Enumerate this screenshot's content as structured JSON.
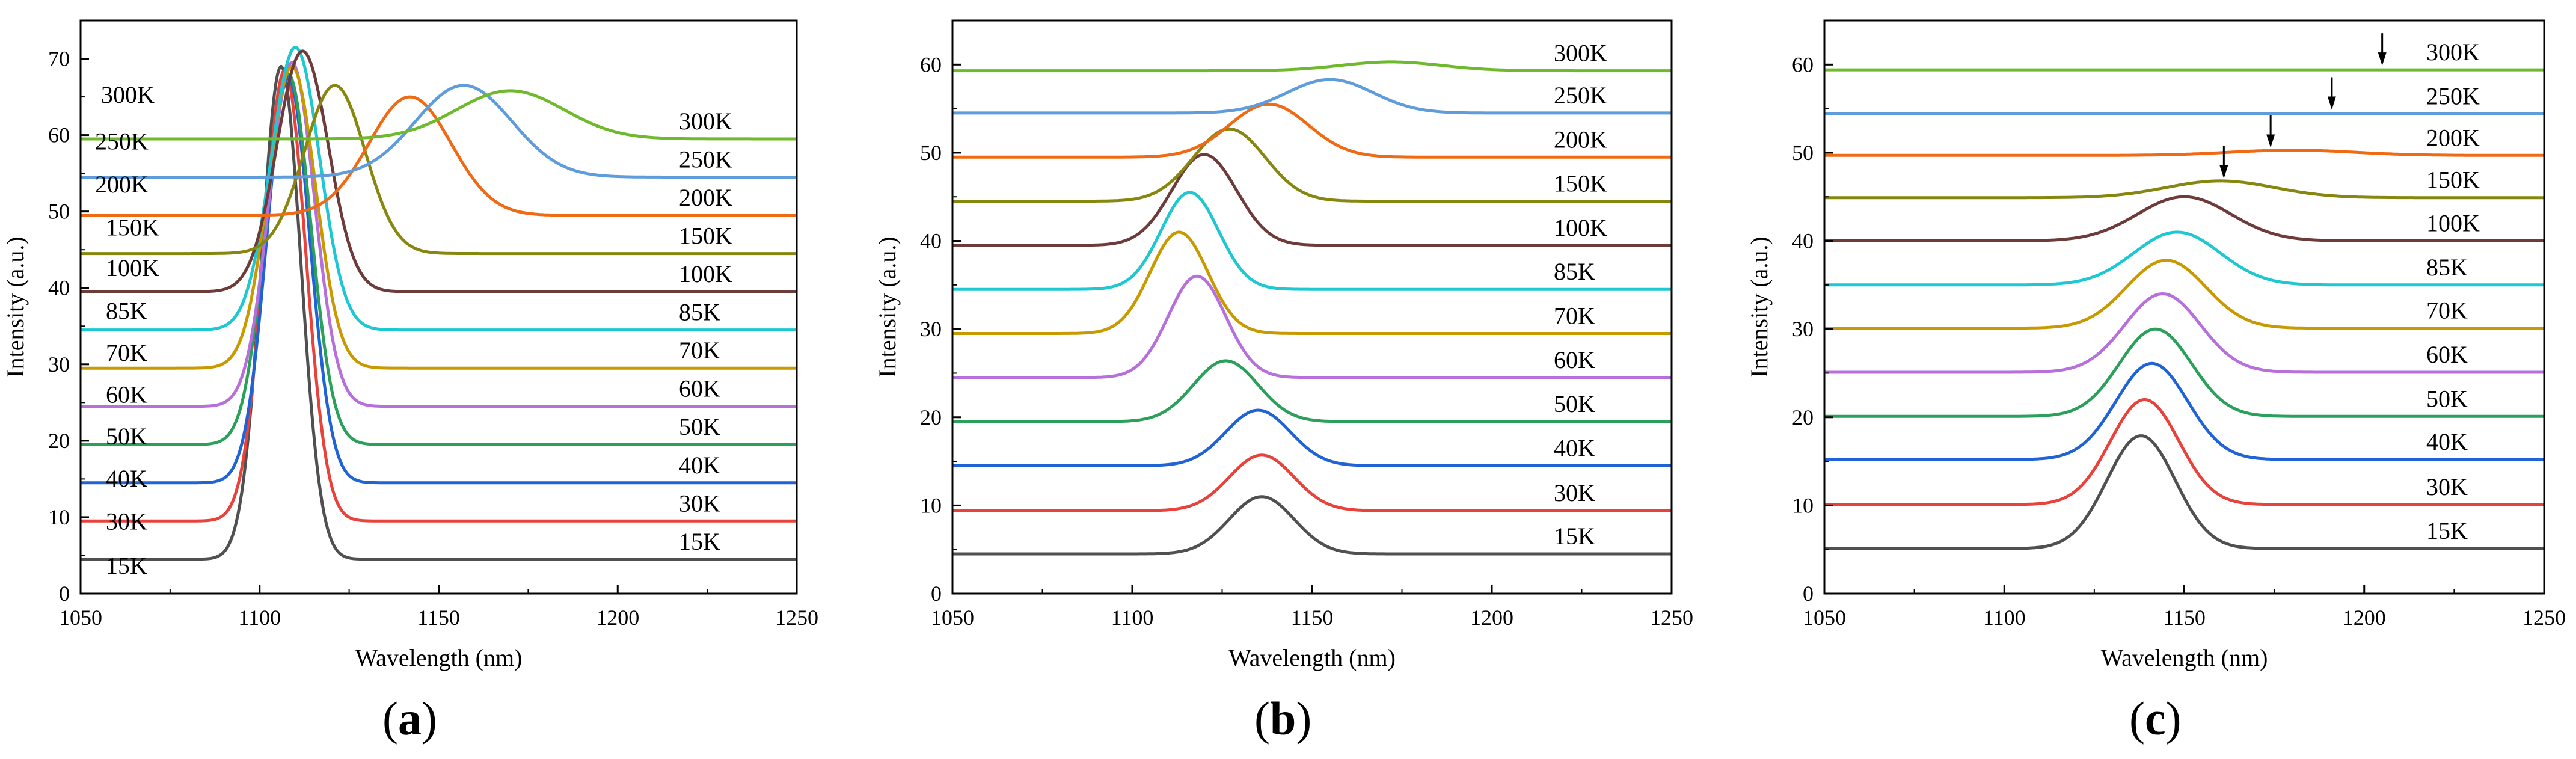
{
  "figure": {
    "panel_labels": [
      {
        "open": "(",
        "letter": "a",
        "close": ")"
      },
      {
        "open": "(",
        "letter": "b",
        "close": ")"
      },
      {
        "open": "(",
        "letter": "c",
        "close": ")"
      }
    ]
  },
  "chart_data": [
    {
      "id": "a",
      "type": "line",
      "title": "",
      "xlabel": "Wavelength (nm)",
      "ylabel": "Intensity (a.u.)",
      "xlim": [
        1050,
        1250
      ],
      "ylim": [
        0,
        75
      ],
      "xticks": [
        1050,
        1100,
        1150,
        1200,
        1250
      ],
      "yticks": [
        0,
        10,
        20,
        30,
        40,
        50,
        60,
        70
      ],
      "left_labels": true,
      "arrows": [],
      "series": [
        {
          "name": "15K",
          "color": "#505050",
          "baseline": 4.5,
          "peaks": [
            {
              "c": 1106,
              "a": 64.5,
              "w": 5.5
            }
          ]
        },
        {
          "name": "30K",
          "color": "#e8423b",
          "baseline": 9.5,
          "peaks": [
            {
              "c": 1107,
              "a": 59.0,
              "w": 5.8
            }
          ]
        },
        {
          "name": "40K",
          "color": "#1f63d6",
          "baseline": 14.5,
          "peaks": [
            {
              "c": 1108,
              "a": 53.0,
              "w": 6.0
            }
          ]
        },
        {
          "name": "50K",
          "color": "#2aa05a",
          "baseline": 19.5,
          "peaks": [
            {
              "c": 1108,
              "a": 48.5,
              "w": 6.2
            }
          ]
        },
        {
          "name": "60K",
          "color": "#b66fdb",
          "baseline": 24.5,
          "peaks": [
            {
              "c": 1109,
              "a": 45.0,
              "w": 6.3
            }
          ]
        },
        {
          "name": "70K",
          "color": "#c99a00",
          "baseline": 29.5,
          "peaks": [
            {
              "c": 1109,
              "a": 39.5,
              "w": 6.6
            }
          ]
        },
        {
          "name": "85K",
          "color": "#1ec8d2",
          "baseline": 34.5,
          "peaks": [
            {
              "c": 1110,
              "a": 37.0,
              "w": 6.8
            }
          ]
        },
        {
          "name": "100K",
          "color": "#6e3b3b",
          "baseline": 39.5,
          "peaks": [
            {
              "c": 1112,
              "a": 31.5,
              "w": 7.2
            }
          ]
        },
        {
          "name": "150K",
          "color": "#878710",
          "baseline": 44.5,
          "peaks": [
            {
              "c": 1121,
              "a": 22.0,
              "w": 8.5
            }
          ]
        },
        {
          "name": "200K",
          "color": "#f06a14",
          "baseline": 49.5,
          "peaks": [
            {
              "c": 1142,
              "a": 15.5,
              "w": 11.5
            }
          ]
        },
        {
          "name": "250K",
          "color": "#5f9cdc",
          "baseline": 54.5,
          "peaks": [
            {
              "c": 1157,
              "a": 12.0,
              "w": 13.5
            }
          ]
        },
        {
          "name": "300K",
          "color": "#6fba2c",
          "baseline": 59.5,
          "peaks": [
            {
              "c": 1170,
              "a": 6.3,
              "w": 15.0
            }
          ]
        }
      ]
    },
    {
      "id": "b",
      "type": "line",
      "title": "",
      "xlabel": "Wavelength (nm)",
      "ylabel": "Intensity (a.u.)",
      "xlim": [
        1050,
        1250
      ],
      "ylim": [
        0,
        65
      ],
      "xticks": [
        1050,
        1100,
        1150,
        1200,
        1250
      ],
      "yticks": [
        0,
        10,
        20,
        30,
        40,
        50,
        60
      ],
      "left_labels": false,
      "arrows": [],
      "series": [
        {
          "name": "15K",
          "color": "#505050",
          "baseline": 4.5,
          "peaks": [
            {
              "c": 1136,
              "a": 6.5,
              "w": 9
            }
          ]
        },
        {
          "name": "30K",
          "color": "#e8423b",
          "baseline": 9.4,
          "peaks": [
            {
              "c": 1136,
              "a": 6.3,
              "w": 9
            }
          ]
        },
        {
          "name": "40K",
          "color": "#1f63d6",
          "baseline": 14.5,
          "peaks": [
            {
              "c": 1135,
              "a": 6.3,
              "w": 9
            }
          ]
        },
        {
          "name": "50K",
          "color": "#2aa05a",
          "baseline": 19.5,
          "peaks": [
            {
              "c": 1126,
              "a": 6.9,
              "w": 9
            }
          ]
        },
        {
          "name": "60K",
          "color": "#b66fdb",
          "baseline": 24.5,
          "peaks": [
            {
              "c": 1118,
              "a": 11.5,
              "w": 8
            }
          ]
        },
        {
          "name": "70K",
          "color": "#c99a00",
          "baseline": 29.5,
          "peaks": [
            {
              "c": 1113,
              "a": 11.5,
              "w": 8
            }
          ]
        },
        {
          "name": "85K",
          "color": "#1ec8d2",
          "baseline": 34.5,
          "peaks": [
            {
              "c": 1116,
              "a": 11.0,
              "w": 8
            }
          ]
        },
        {
          "name": "100K",
          "color": "#6e3b3b",
          "baseline": 39.5,
          "peaks": [
            {
              "c": 1120,
              "a": 10.3,
              "w": 9
            }
          ]
        },
        {
          "name": "150K",
          "color": "#878710",
          "baseline": 44.5,
          "peaks": [
            {
              "c": 1127,
              "a": 8.2,
              "w": 10
            }
          ]
        },
        {
          "name": "200K",
          "color": "#f06a14",
          "baseline": 49.5,
          "peaks": [
            {
              "c": 1138,
              "a": 6.0,
              "w": 11
            }
          ]
        },
        {
          "name": "250K",
          "color": "#5f9cdc",
          "baseline": 54.5,
          "peaks": [
            {
              "c": 1155,
              "a": 3.8,
              "w": 12
            }
          ]
        },
        {
          "name": "300K",
          "color": "#6fba2c",
          "baseline": 59.3,
          "peaks": [
            {
              "c": 1172,
              "a": 1.0,
              "w": 14
            }
          ]
        }
      ]
    },
    {
      "id": "c",
      "type": "line",
      "title": "",
      "xlabel": "Wavelength (nm)",
      "ylabel": "Intensity (a.u.)",
      "xlim": [
        1050,
        1250
      ],
      "ylim": [
        0,
        65
      ],
      "xticks": [
        1050,
        1100,
        1150,
        1200,
        1250
      ],
      "yticks": [
        0,
        10,
        20,
        30,
        40,
        50,
        60
      ],
      "left_labels": false,
      "arrows": [
        {
          "x": 1205,
          "y": 59.6
        },
        {
          "x": 1191,
          "y": 54.6
        },
        {
          "x": 1174,
          "y": 50.3
        },
        {
          "x": 1161,
          "y": 46.8
        }
      ],
      "series": [
        {
          "name": "15K",
          "color": "#505050",
          "baseline": 5.1,
          "peaks": [
            {
              "c": 1138,
              "a": 12.8,
              "w": 9.5
            }
          ]
        },
        {
          "name": "30K",
          "color": "#e8423b",
          "baseline": 10.1,
          "peaks": [
            {
              "c": 1139,
              "a": 11.9,
              "w": 9.5
            }
          ]
        },
        {
          "name": "40K",
          "color": "#1f63d6",
          "baseline": 15.2,
          "peaks": [
            {
              "c": 1141,
              "a": 10.9,
              "w": 10
            }
          ]
        },
        {
          "name": "50K",
          "color": "#2aa05a",
          "baseline": 20.1,
          "peaks": [
            {
              "c": 1142,
              "a": 9.9,
              "w": 10
            }
          ]
        },
        {
          "name": "60K",
          "color": "#b66fdb",
          "baseline": 25.1,
          "peaks": [
            {
              "c": 1144,
              "a": 8.9,
              "w": 10.5
            }
          ]
        },
        {
          "name": "70K",
          "color": "#c99a00",
          "baseline": 30.1,
          "peaks": [
            {
              "c": 1145,
              "a": 7.7,
              "w": 11
            }
          ]
        },
        {
          "name": "85K",
          "color": "#1ec8d2",
          "baseline": 35.0,
          "peaks": [
            {
              "c": 1148,
              "a": 6.0,
              "w": 12
            }
          ]
        },
        {
          "name": "100K",
          "color": "#6e3b3b",
          "baseline": 40.0,
          "peaks": [
            {
              "c": 1150,
              "a": 5.0,
              "w": 13
            }
          ]
        },
        {
          "name": "150K",
          "color": "#878710",
          "baseline": 44.9,
          "peaks": [
            {
              "c": 1160,
              "a": 1.9,
              "w": 15
            }
          ]
        },
        {
          "name": "200K",
          "color": "#f06a14",
          "baseline": 49.7,
          "peaks": [
            {
              "c": 1180,
              "a": 0.6,
              "w": 17
            }
          ]
        },
        {
          "name": "250K",
          "color": "#5f9cdc",
          "baseline": 54.4,
          "peaks": []
        },
        {
          "name": "300K",
          "color": "#6fba2c",
          "baseline": 59.4,
          "peaks": []
        }
      ]
    }
  ]
}
